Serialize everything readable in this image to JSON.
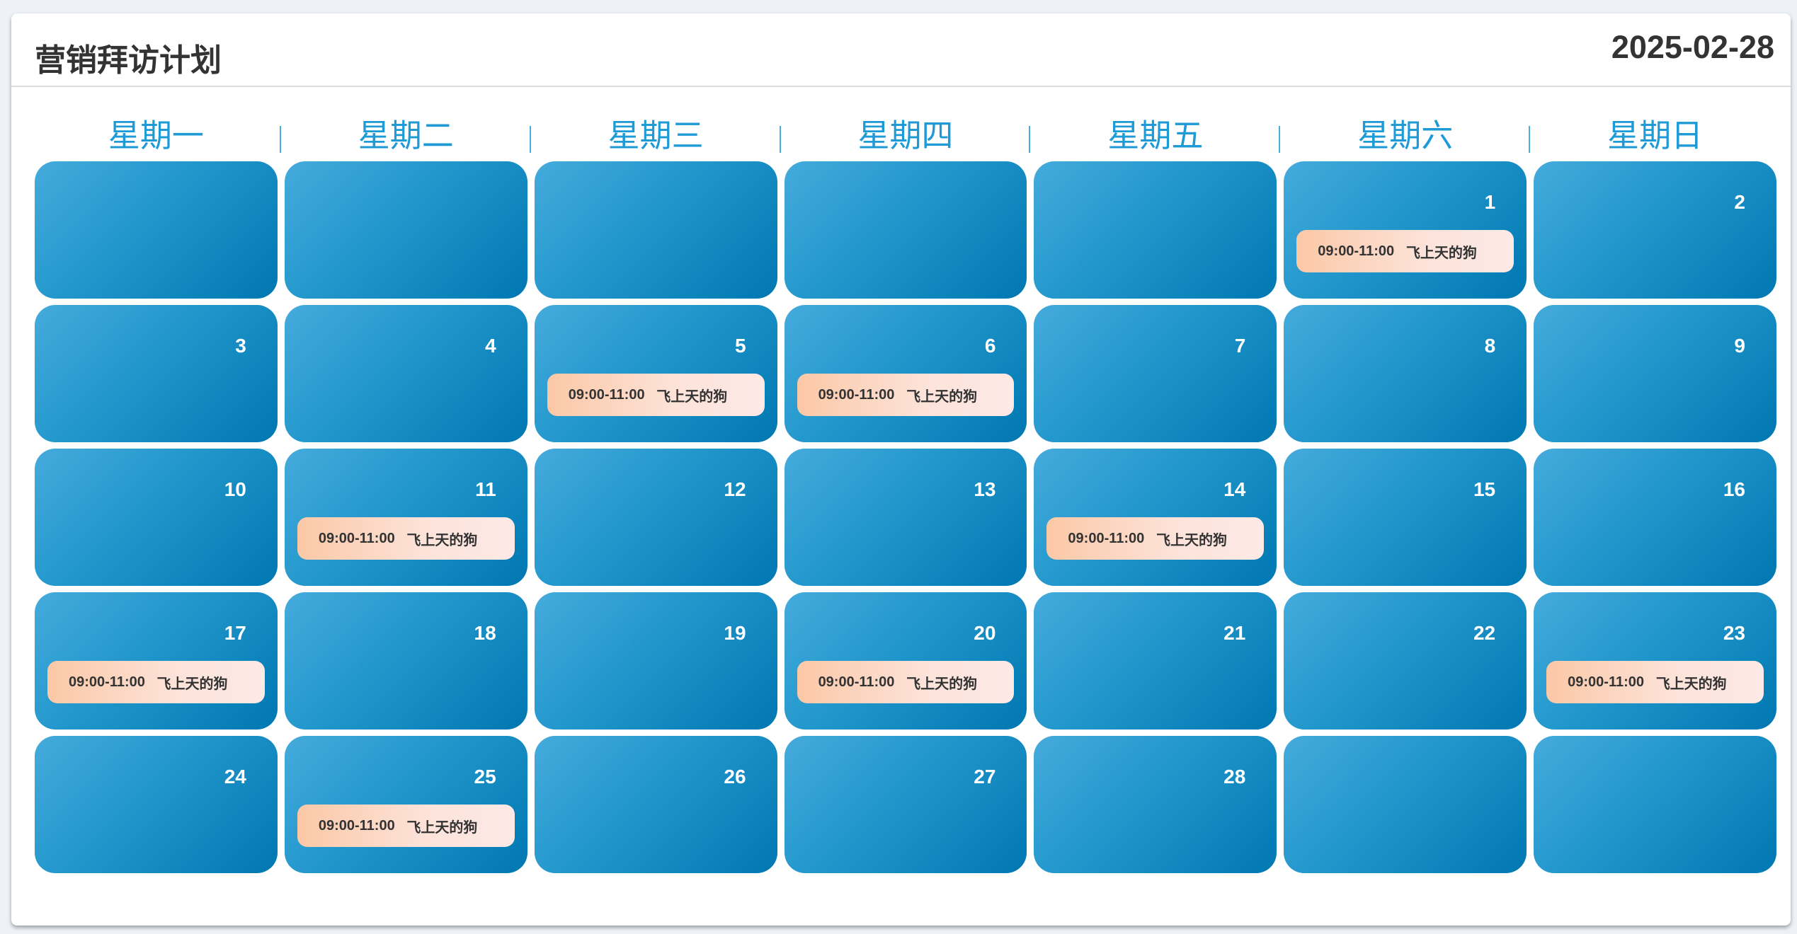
{
  "header": {
    "title": "营销拜访计划",
    "date": "2025-02-28"
  },
  "colors": {
    "accent": "#1e9ad6",
    "cell_gradient": [
      "#45abdc",
      "#0077b1"
    ],
    "event_gradient": [
      "#fbc8a6",
      "#fde9e6"
    ]
  },
  "weekdays": [
    "星期一",
    "星期二",
    "星期三",
    "星期四",
    "星期五",
    "星期六",
    "星期日"
  ],
  "calendar": {
    "cells": [
      {
        "day": null
      },
      {
        "day": null
      },
      {
        "day": null
      },
      {
        "day": null
      },
      {
        "day": null
      },
      {
        "day": "1",
        "event": {
          "time": "09:00-11:00",
          "title": "飞上天的狗"
        }
      },
      {
        "day": "2"
      },
      {
        "day": "3"
      },
      {
        "day": "4"
      },
      {
        "day": "5",
        "event": {
          "time": "09:00-11:00",
          "title": "飞上天的狗"
        }
      },
      {
        "day": "6",
        "event": {
          "time": "09:00-11:00",
          "title": "飞上天的狗"
        }
      },
      {
        "day": "7"
      },
      {
        "day": "8"
      },
      {
        "day": "9"
      },
      {
        "day": "10"
      },
      {
        "day": "11",
        "event": {
          "time": "09:00-11:00",
          "title": "飞上天的狗"
        }
      },
      {
        "day": "12"
      },
      {
        "day": "13"
      },
      {
        "day": "14",
        "event": {
          "time": "09:00-11:00",
          "title": "飞上天的狗"
        }
      },
      {
        "day": "15"
      },
      {
        "day": "16"
      },
      {
        "day": "17",
        "event": {
          "time": "09:00-11:00",
          "title": "飞上天的狗"
        }
      },
      {
        "day": "18"
      },
      {
        "day": "19"
      },
      {
        "day": "20",
        "event": {
          "time": "09:00-11:00",
          "title": "飞上天的狗"
        }
      },
      {
        "day": "21"
      },
      {
        "day": "22"
      },
      {
        "day": "23",
        "event": {
          "time": "09:00-11:00",
          "title": "飞上天的狗"
        }
      },
      {
        "day": "24"
      },
      {
        "day": "25",
        "event": {
          "time": "09:00-11:00",
          "title": "飞上天的狗"
        }
      },
      {
        "day": "26"
      },
      {
        "day": "27"
      },
      {
        "day": "28"
      },
      {
        "day": null
      },
      {
        "day": null
      }
    ]
  }
}
